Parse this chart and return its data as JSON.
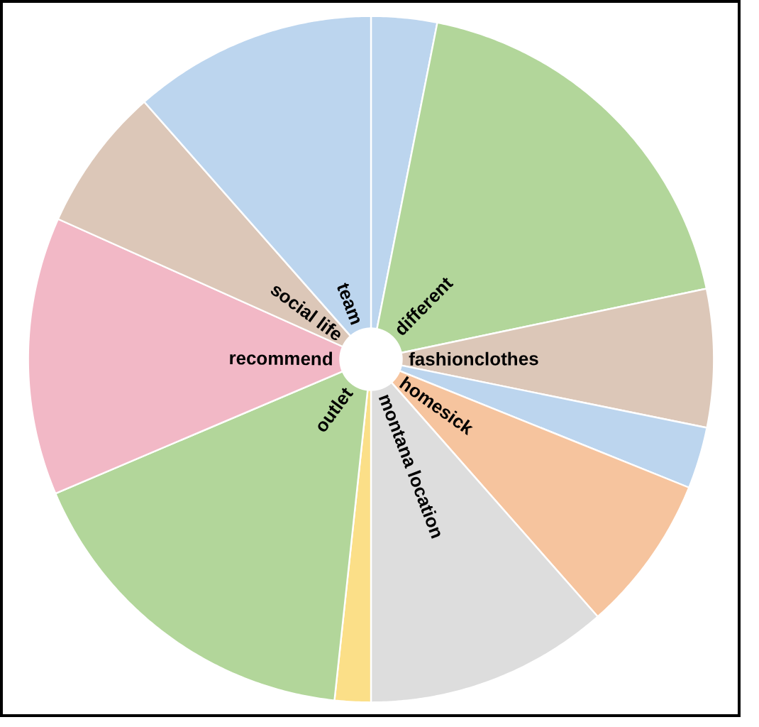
{
  "chart_data": {
    "type": "pie",
    "categories": [
      null,
      "different",
      "fashionclothes",
      null,
      "homesick",
      "montana location",
      null,
      "outlet",
      "recommend",
      "social life",
      "team"
    ],
    "values": [
      3.1,
      18.6,
      6.5,
      2.9,
      7.4,
      11.5,
      1.7,
      16.9,
      13.1,
      6.8,
      11.5
    ],
    "colors": [
      "#bcd5ee",
      "#b2d69a",
      "#dcc7b8",
      "#bcd5ee",
      "#f6c49e",
      "#dddddd",
      "#fbdf88",
      "#b2d69a",
      "#f2b8c6",
      "#dcc7b8",
      "#bcd5ee"
    ]
  }
}
